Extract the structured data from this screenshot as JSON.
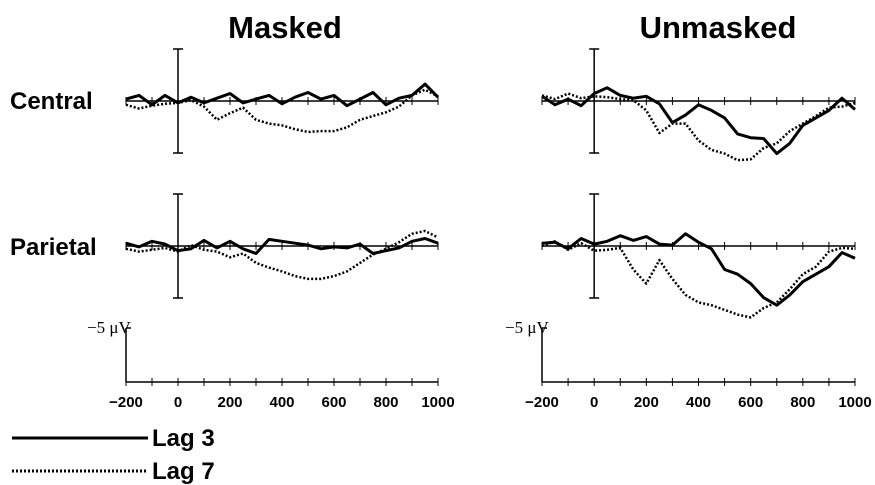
{
  "chart_data": {
    "type": "line",
    "columns": [
      "Masked",
      "Unmasked"
    ],
    "rows": [
      "Central",
      "Parietal"
    ],
    "x_ticks": [
      -200,
      0,
      200,
      400,
      600,
      800,
      1000
    ],
    "xlim": [
      -200,
      1000
    ],
    "scale_bar": "−5 μV",
    "legend": [
      {
        "name": "Lag 3",
        "style": "solid"
      },
      {
        "name": "Lag 7",
        "style": "dotted"
      }
    ],
    "panels": [
      {
        "column": "Masked",
        "row": "Central",
        "series": [
          {
            "name": "Lag 3",
            "x": [
              -200,
              -150,
              -100,
              -50,
              0,
              50,
              100,
              150,
              200,
              250,
              300,
              350,
              400,
              450,
              500,
              550,
              600,
              650,
              700,
              750,
              800,
              850,
              900,
              950,
              1000
            ],
            "y": [
              0.2,
              0.6,
              -0.4,
              0.6,
              -0.2,
              0.4,
              -0.2,
              0.3,
              0.8,
              -0.2,
              0.2,
              0.6,
              -0.3,
              0.4,
              0.9,
              0.2,
              0.6,
              -0.5,
              0.2,
              0.9,
              -0.4,
              0.3,
              0.6,
              1.8,
              0.4
            ]
          },
          {
            "name": "Lag 7",
            "x": [
              -200,
              -150,
              -100,
              -50,
              0,
              50,
              100,
              150,
              200,
              250,
              300,
              350,
              400,
              450,
              500,
              550,
              600,
              650,
              700,
              750,
              800,
              850,
              900,
              950,
              1000
            ],
            "y": [
              -0.4,
              -0.8,
              -0.5,
              -0.3,
              -0.2,
              0.1,
              -0.6,
              -2.0,
              -1.3,
              -0.7,
              -2.0,
              -2.4,
              -2.6,
              -3.0,
              -3.3,
              -3.2,
              -3.2,
              -2.8,
              -2.0,
              -1.6,
              -1.2,
              -0.6,
              0.6,
              1.2,
              0.5
            ]
          }
        ]
      },
      {
        "column": "Masked",
        "row": "Parietal",
        "series": [
          {
            "name": "Lag 3",
            "x": [
              -200,
              -150,
              -100,
              -50,
              0,
              50,
              100,
              150,
              200,
              250,
              300,
              350,
              400,
              450,
              500,
              550,
              600,
              650,
              700,
              750,
              800,
              850,
              900,
              950,
              1000
            ],
            "y": [
              0.3,
              -0.1,
              0.5,
              0.2,
              -0.5,
              -0.3,
              0.6,
              -0.2,
              0.5,
              -0.3,
              -0.8,
              0.7,
              0.5,
              0.3,
              0.1,
              -0.3,
              -0.1,
              -0.2,
              0.2,
              -0.8,
              -0.5,
              -0.2,
              0.5,
              0.8,
              0.3
            ]
          },
          {
            "name": "Lag 7",
            "x": [
              -200,
              -150,
              -100,
              -50,
              0,
              50,
              100,
              150,
              200,
              250,
              300,
              350,
              400,
              450,
              500,
              550,
              600,
              650,
              700,
              750,
              800,
              850,
              900,
              950,
              1000
            ],
            "y": [
              -0.3,
              -0.6,
              -0.4,
              -0.2,
              -0.6,
              0.1,
              -0.4,
              -0.6,
              -1.2,
              -0.8,
              -1.8,
              -2.3,
              -2.7,
              -3.2,
              -3.5,
              -3.5,
              -3.2,
              -2.7,
              -1.8,
              -0.9,
              -0.3,
              0.4,
              1.3,
              1.6,
              0.9
            ]
          }
        ]
      },
      {
        "column": "Unmasked",
        "row": "Central",
        "series": [
          {
            "name": "Lag 3",
            "x": [
              -200,
              -150,
              -100,
              -50,
              0,
              50,
              100,
              150,
              200,
              250,
              300,
              350,
              400,
              450,
              500,
              550,
              600,
              650,
              700,
              750,
              800,
              850,
              900,
              950,
              1000
            ],
            "y": [
              0.5,
              -0.4,
              0.2,
              -0.5,
              0.8,
              1.4,
              0.6,
              0.3,
              0.5,
              -0.3,
              -2.3,
              -1.5,
              -0.4,
              -1.0,
              -1.8,
              -3.5,
              -3.9,
              -4.0,
              -5.6,
              -4.5,
              -2.6,
              -1.8,
              -1.0,
              0.3,
              -0.9
            ]
          },
          {
            "name": "Lag 7",
            "x": [
              -200,
              -150,
              -100,
              -50,
              0,
              50,
              100,
              150,
              200,
              250,
              300,
              350,
              400,
              450,
              500,
              550,
              600,
              650,
              700,
              750,
              800,
              850,
              900,
              950,
              1000
            ],
            "y": [
              0.6,
              0.2,
              0.8,
              0.3,
              0.5,
              0.4,
              0.2,
              0.1,
              -1.0,
              -3.4,
              -2.4,
              -2.4,
              -4.2,
              -5.2,
              -5.6,
              -6.3,
              -6.2,
              -5.0,
              -4.5,
              -3.2,
              -2.4,
              -1.6,
              -0.7,
              -0.6,
              -0.2
            ]
          }
        ]
      },
      {
        "column": "Unmasked",
        "row": "Parietal",
        "series": [
          {
            "name": "Lag 3",
            "x": [
              -200,
              -150,
              -100,
              -50,
              0,
              50,
              100,
              150,
              200,
              250,
              300,
              350,
              400,
              450,
              500,
              550,
              600,
              650,
              700,
              750,
              800,
              850,
              900,
              950,
              1000
            ],
            "y": [
              0.3,
              0.4,
              -0.3,
              0.8,
              0.2,
              0.5,
              1.1,
              0.6,
              1.0,
              0.2,
              0.1,
              1.3,
              0.4,
              -0.3,
              -2.5,
              -3.0,
              -4.0,
              -5.5,
              -6.3,
              -5.2,
              -3.8,
              -3.0,
              -2.2,
              -0.7,
              -1.3
            ]
          },
          {
            "name": "Lag 7",
            "x": [
              -200,
              -150,
              -100,
              -50,
              0,
              50,
              100,
              150,
              200,
              250,
              300,
              350,
              400,
              450,
              500,
              550,
              600,
              650,
              700,
              750,
              800,
              850,
              900,
              950,
              1000
            ],
            "y": [
              0.0,
              0.5,
              -0.4,
              0.3,
              -0.5,
              -0.4,
              -0.2,
              -2.5,
              -4.0,
              -1.5,
              -3.5,
              -5.2,
              -6.0,
              -6.3,
              -6.8,
              -7.3,
              -7.6,
              -6.6,
              -6.0,
              -4.6,
              -3.0,
              -2.2,
              -0.6,
              -0.2,
              -0.3
            ]
          }
        ]
      }
    ]
  }
}
